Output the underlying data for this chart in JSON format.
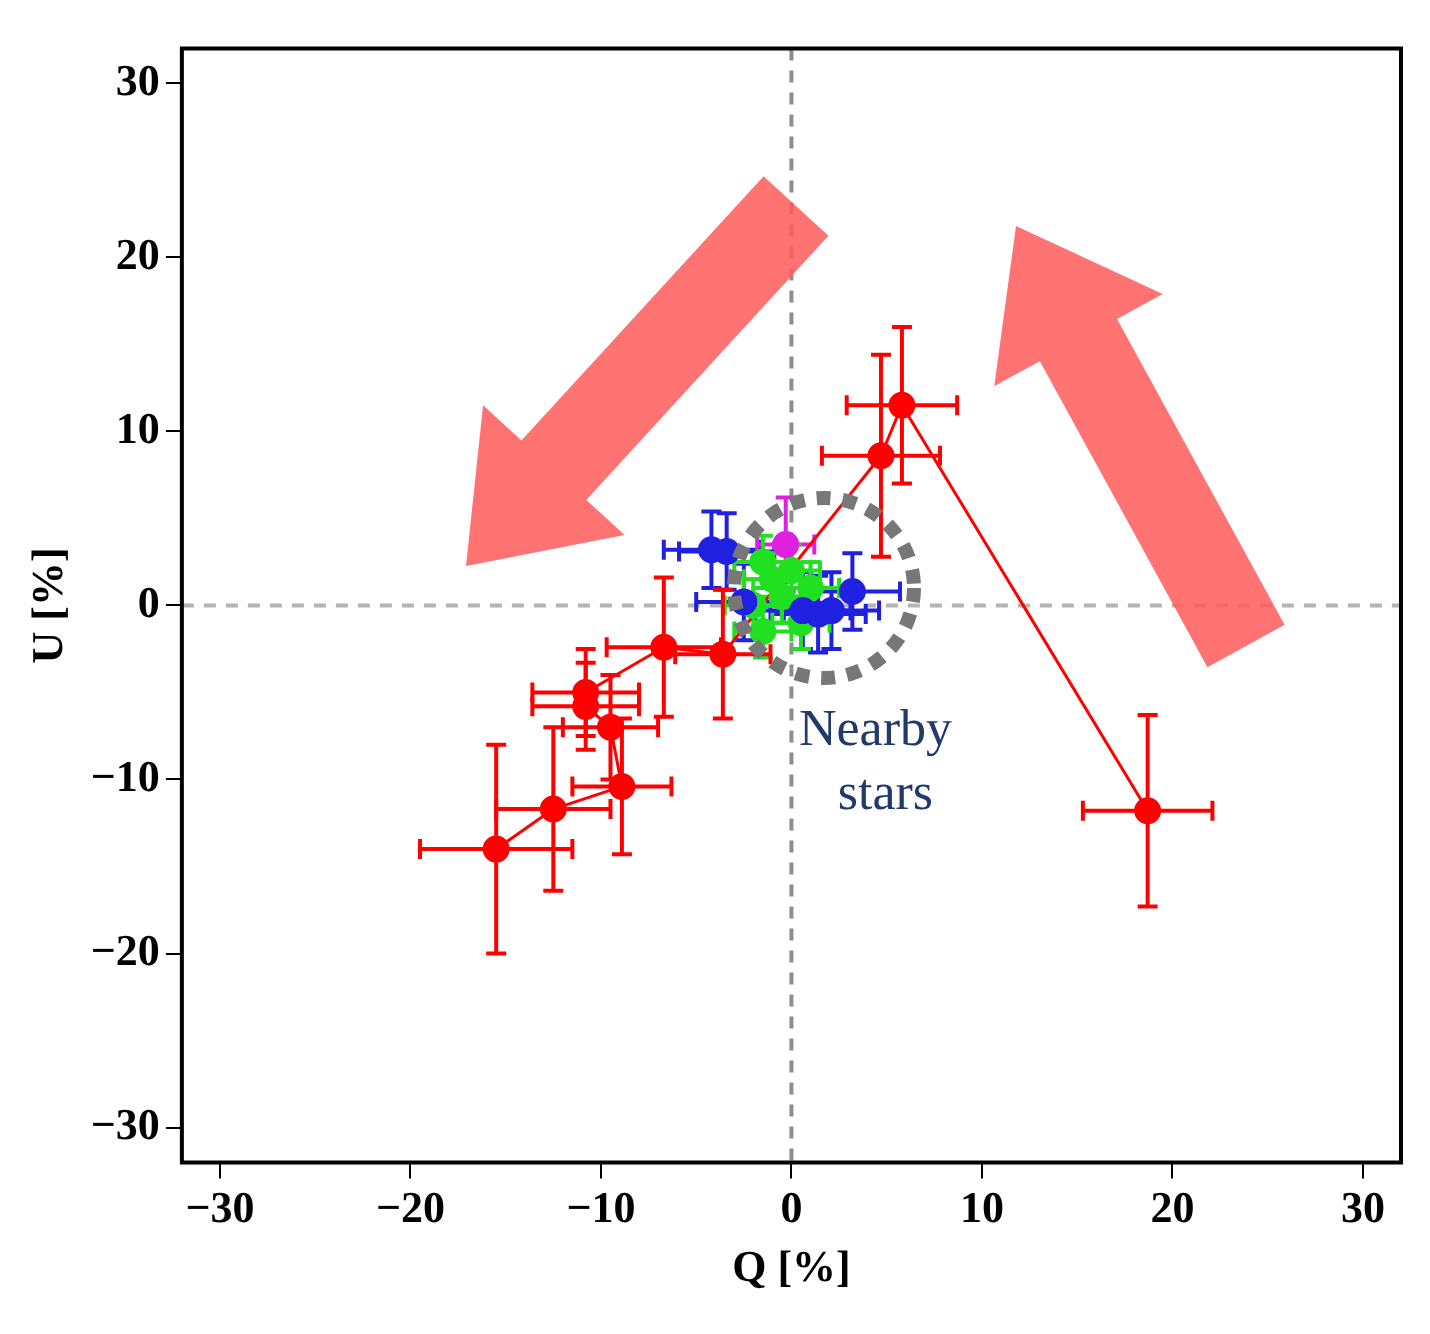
{
  "chart_data": {
    "type": "scatter",
    "xlabel": "Q [%]",
    "ylabel": "U [%]",
    "xlim": [
      -32,
      32
    ],
    "ylim": [
      -32,
      32
    ],
    "xticks": [
      -30,
      -20,
      -10,
      0,
      10,
      20,
      30
    ],
    "yticks": [
      -30,
      -20,
      -10,
      0,
      10,
      20,
      30
    ],
    "grid": false,
    "legend": false,
    "marker": "circle",
    "annotations": [
      "Nearby stars"
    ],
    "ref_lines": [
      {
        "axis": "x",
        "value": 0,
        "color": "#8c8c8c",
        "line_style": "dashed"
      },
      {
        "axis": "y",
        "value": 0,
        "color": "#b4b4b4",
        "line_style": "dashed"
      }
    ],
    "series": [
      {
        "type": "scatter",
        "color": "#2020e0",
        "x": [
          -4.2,
          -3.4,
          -2.5,
          0.6,
          1.4,
          2.1,
          3.2
        ],
        "values": [
          3.2,
          3.1,
          0.2,
          -0.3,
          -0.5,
          -0.3,
          0.8
        ],
        "errors": [
          2.2,
          2.2,
          2.2,
          2.2,
          2.2,
          2.2,
          2.2
        ],
        "xerrors": [
          2.5,
          2.5,
          2.5,
          2.5,
          2.5,
          2.5,
          2.5
        ]
      },
      {
        "type": "scatter",
        "color": "#e020e0",
        "x": [
          -0.3
        ],
        "values": [
          3.5
        ],
        "errors": [
          2.7
        ],
        "xerrors": [
          1.5
        ]
      },
      {
        "type": "scatter",
        "color": "#20e020",
        "x": [
          -1.5,
          -1,
          -0.5,
          -1.5,
          0,
          -2,
          1,
          0.5
        ],
        "values": [
          2.5,
          1.5,
          0.5,
          -1.5,
          2,
          0,
          1,
          -1
        ],
        "errors": [
          1.5,
          1.5,
          1.5,
          1.5,
          1.5,
          1.5,
          1.5,
          1.5
        ],
        "xerrors": [
          1.5,
          1.5,
          1.5,
          1.5,
          1.5,
          1.5,
          1.5,
          1.5
        ]
      },
      {
        "type": "line",
        "color": "#ff0000",
        "x": [
          -15.5,
          -12.5,
          -8.9,
          -9.5,
          -10.8,
          -10.8,
          -6.7,
          -3.6,
          4.7,
          5.8,
          18.7
        ],
        "values": [
          -14,
          -11.7,
          -10.4,
          -7,
          -5.8,
          -5,
          -2.4,
          -2.8,
          8.6,
          11.5,
          -11.8
        ],
        "errors": [
          6,
          4.7,
          3.9,
          3,
          2.5,
          2.5,
          4,
          3.7,
          5.8,
          4.5,
          5.5
        ],
        "xerrors": [
          4,
          3,
          2.6,
          2.5,
          2.8,
          2.8,
          3,
          2.5,
          3.1,
          2.9,
          3.4
        ]
      }
    ]
  }
}
